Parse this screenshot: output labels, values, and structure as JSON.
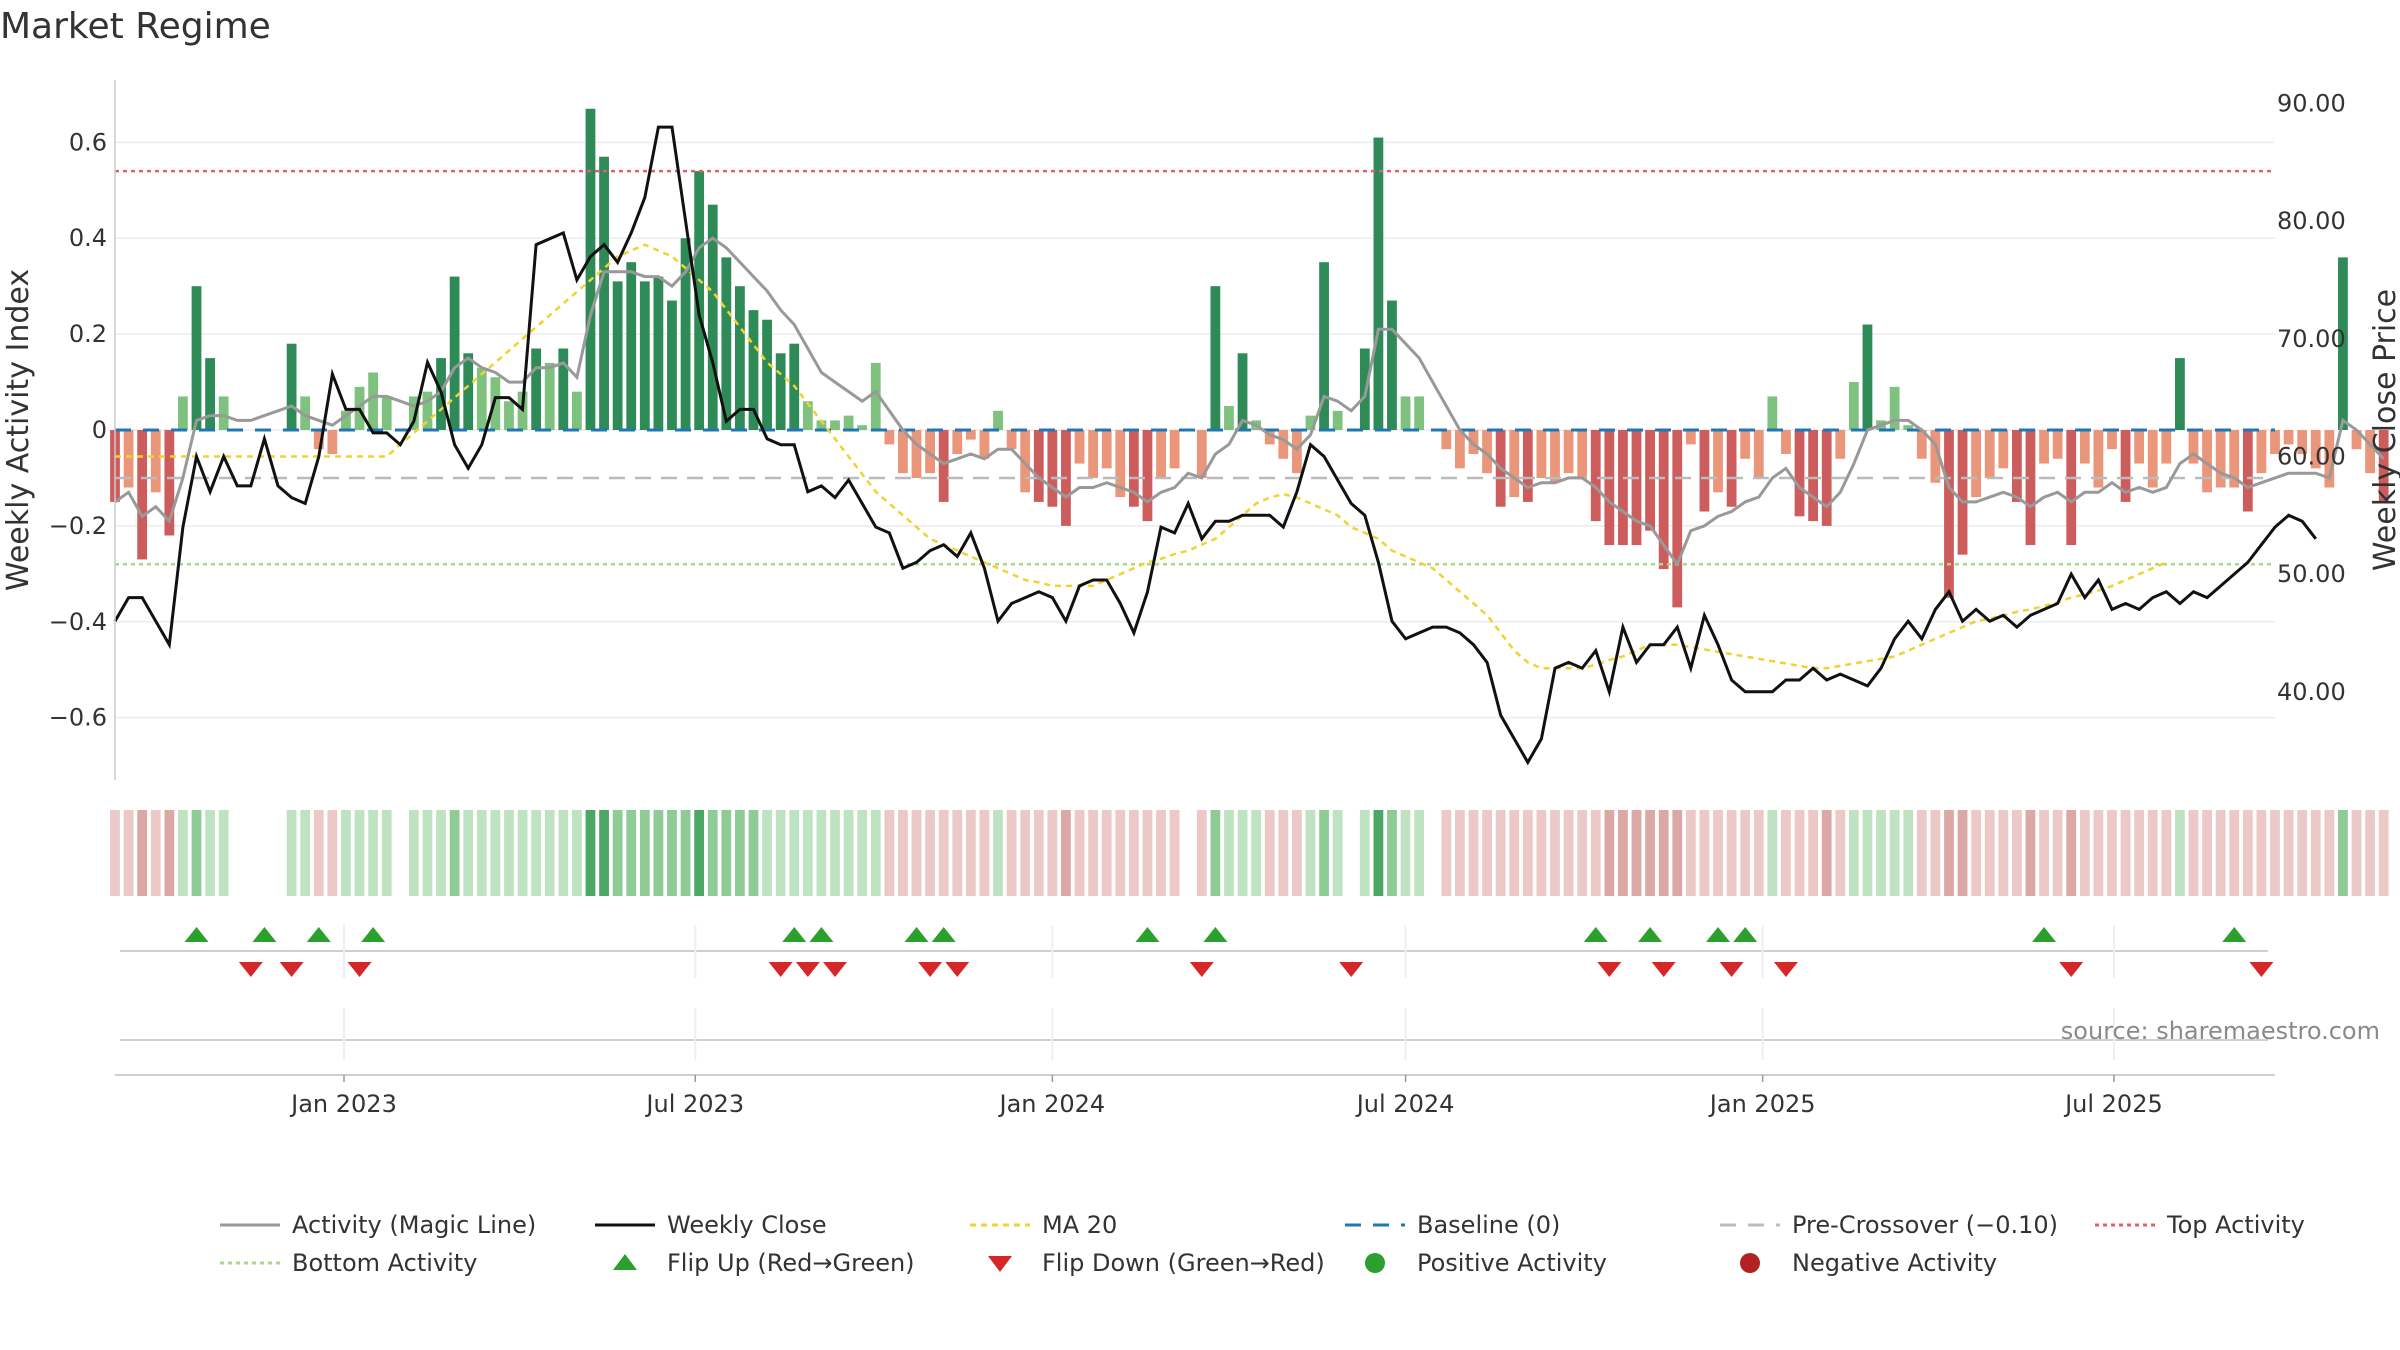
{
  "chart_data": {
    "type": "bar",
    "title": "Market Regime",
    "ylabel_left": "Weekly Activity Index",
    "ylabel_right": "Weekly Close Price",
    "ylim_left": [
      -0.73,
      0.73
    ],
    "ylim_right": [
      32.5,
      92.0
    ],
    "yticks_left": [
      0.6,
      0.4,
      0.2,
      0,
      -0.2,
      -0.4,
      -0.6
    ],
    "yticks_left_labels": [
      "0.6",
      "0.4",
      "0.2",
      "0",
      "−0.2",
      "−0.4",
      "−0.6"
    ],
    "yticks_right": [
      90,
      80,
      70,
      60,
      50,
      40
    ],
    "yticks_right_labels": [
      "90.00",
      "80.00",
      "70.00",
      "60.00",
      "50.00",
      "40.00"
    ],
    "x_start": "2022-09-05",
    "x_end": "2025-09-22",
    "xticks": [
      {
        "date": "2023-01-01",
        "label": "Jan 2023"
      },
      {
        "date": "2023-07-01",
        "label": "Jul 2023"
      },
      {
        "date": "2024-01-01",
        "label": "Jan 2024"
      },
      {
        "date": "2024-07-01",
        "label": "Jul 2024"
      },
      {
        "date": "2025-01-01",
        "label": "Jan 2025"
      },
      {
        "date": "2025-07-01",
        "label": "Jul 2025"
      }
    ],
    "grid": true,
    "top_activity": 0.54,
    "bottom_activity": -0.28,
    "pre_crossover": -0.1,
    "baseline": 0,
    "source": "source: sharemaestro.com",
    "series": [
      {
        "name": "Weekly Activity Index",
        "x_start": "2022-09-05",
        "interval_days": 7,
        "values": [
          -0.15,
          -0.12,
          -0.27,
          -0.13,
          -0.22,
          0.07,
          0.3,
          0.15,
          0.07,
          0.0,
          0.0,
          0.0,
          0.0,
          0.18,
          0.07,
          -0.04,
          -0.05,
          0.04,
          0.09,
          0.12,
          0.07,
          0.0,
          0.07,
          0.08,
          0.15,
          0.32,
          0.16,
          0.13,
          0.11,
          0.06,
          0.08,
          0.17,
          0.14,
          0.17,
          0.08,
          0.67,
          0.57,
          0.31,
          0.35,
          0.31,
          0.32,
          0.27,
          0.4,
          0.54,
          0.47,
          0.36,
          0.3,
          0.25,
          0.23,
          0.16,
          0.18,
          0.06,
          0.02,
          0.02,
          0.03,
          0.01,
          0.14,
          -0.03,
          -0.09,
          -0.1,
          -0.09,
          -0.15,
          -0.05,
          -0.02,
          -0.06,
          0.04,
          -0.04,
          -0.13,
          -0.15,
          -0.16,
          -0.2,
          -0.07,
          -0.1,
          -0.08,
          -0.14,
          -0.16,
          -0.19,
          -0.1,
          -0.08,
          0.0,
          -0.1,
          0.3,
          0.05,
          0.16,
          0.02,
          -0.03,
          -0.06,
          -0.09,
          0.03,
          0.35,
          0.04,
          0.0,
          0.17,
          0.61,
          0.27,
          0.07,
          0.07,
          0.0,
          -0.04,
          -0.08,
          -0.05,
          -0.09,
          -0.16,
          -0.14,
          -0.15,
          -0.1,
          -0.11,
          -0.09,
          -0.1,
          -0.19,
          -0.24,
          -0.24,
          -0.24,
          -0.21,
          -0.29,
          -0.37,
          -0.03,
          -0.17,
          -0.13,
          -0.16,
          -0.06,
          -0.1,
          0.07,
          -0.05,
          -0.18,
          -0.19,
          -0.2,
          -0.06,
          0.1,
          0.22,
          0.02,
          0.09,
          0.01,
          -0.06,
          -0.11,
          -0.35,
          -0.26,
          -0.14,
          -0.1,
          -0.08,
          -0.15,
          -0.24,
          -0.07,
          -0.06,
          -0.24,
          -0.07,
          -0.12,
          -0.04,
          -0.15,
          -0.07,
          -0.12,
          -0.07,
          0.15,
          -0.07,
          -0.13,
          -0.12,
          -0.12,
          -0.17,
          -0.09,
          -0.05,
          -0.03,
          -0.05,
          -0.08,
          -0.12,
          0.36,
          -0.04,
          -0.09,
          -0.15
        ]
      },
      {
        "name": "Weekly Close",
        "x_start": "2022-09-05",
        "interval_days": 7,
        "values": [
          46.0,
          48.0,
          48.0,
          46.0,
          44.0,
          54.0,
          60.0,
          57.0,
          60.0,
          57.5,
          57.5,
          61.5,
          57.5,
          56.5,
          56.0,
          60.0,
          67.0,
          64.0,
          64.0,
          62.0,
          62.0,
          61.0,
          63.0,
          68.0,
          65.5,
          61.0,
          59.0,
          61.0,
          65.0,
          65.0,
          64.0,
          78.0,
          78.5,
          79.0,
          75.0,
          77.0,
          78.0,
          76.5,
          79.0,
          82.0,
          88.0,
          88.0,
          80.0,
          72.0,
          68.0,
          63.0,
          64.0,
          64.0,
          61.5,
          61.0,
          61.0,
          57.0,
          57.5,
          56.5,
          58.0,
          56.0,
          54.0,
          53.5,
          50.5,
          51.0,
          52.0,
          52.5,
          51.5,
          53.5,
          50.5,
          46.0,
          47.5,
          48.0,
          48.5,
          48.0,
          46.0,
          49.0,
          49.5,
          49.5,
          47.5,
          45.0,
          48.5,
          54.0,
          53.5,
          56.0,
          53.0,
          54.5,
          54.5,
          55.0,
          55.0,
          55.0,
          54.0,
          57.0,
          61.0,
          60.0,
          58.0,
          56.0,
          55.0,
          51.0,
          46.0,
          44.5,
          45.0,
          45.5,
          45.5,
          45.0,
          44.0,
          42.5,
          38.0,
          36.0,
          34.0,
          36.0,
          42.0,
          42.5,
          42.0,
          43.5,
          40.0,
          45.5,
          42.5,
          44.0,
          44.0,
          45.5,
          42.0,
          46.5,
          44.0,
          41.0,
          40.0,
          40.0,
          40.0,
          41.0,
          41.0,
          42.0,
          41.0,
          41.5,
          41.0,
          40.5,
          42.0,
          44.5,
          46.0,
          44.5,
          47.0,
          48.5,
          46.0,
          47.0,
          46.0,
          46.5,
          45.5,
          46.5,
          47.0,
          47.5,
          50.0,
          48.0,
          49.5,
          47.0,
          47.5,
          47.0,
          48.0,
          48.5,
          47.5,
          48.5,
          48.0,
          49.0,
          50.0,
          51.0,
          52.5,
          54.0,
          55.0,
          54.5,
          53.0
        ]
      },
      {
        "name": "MA 20",
        "x_start": "2022-09-05",
        "interval_days": 7,
        "values": [
          60.0,
          60.0,
          60.0,
          60.0,
          60.0,
          60.0,
          60.0,
          60.0,
          60.0,
          60.0,
          60.0,
          60.0,
          60.0,
          60.0,
          60.0,
          60.0,
          60.0,
          60.0,
          60.0,
          60.0,
          60.0,
          61.0,
          62.0,
          63.0,
          64.0,
          65.0,
          66.0,
          67.0,
          68.0,
          69.0,
          70.0,
          71.0,
          72.0,
          73.0,
          74.0,
          75.0,
          76.0,
          77.0,
          77.5,
          78.0,
          77.5,
          77.0,
          76.0,
          75.0,
          74.0,
          72.5,
          71.0,
          69.5,
          68.0,
          67.0,
          66.0,
          64.5,
          63.0,
          61.5,
          60.0,
          58.5,
          57.0,
          56.0,
          55.0,
          54.0,
          53.0,
          52.5,
          52.0,
          51.5,
          51.0,
          50.5,
          50.0,
          49.5,
          49.3,
          49.0,
          49.0,
          49.0,
          49.0,
          49.5,
          50.0,
          50.5,
          51.0,
          51.3,
          51.7,
          52.0,
          52.5,
          53.0,
          54.0,
          55.0,
          56.0,
          56.5,
          56.8,
          56.5,
          56.0,
          55.5,
          55.0,
          54.0,
          53.5,
          53.0,
          52.0,
          51.5,
          51.0,
          50.5,
          49.5,
          48.5,
          47.5,
          46.5,
          45.0,
          43.5,
          42.5,
          42.0,
          42.0,
          42.0,
          42.0,
          42.3,
          42.7,
          43.0,
          43.5,
          44.0,
          44.0,
          44.0,
          43.8,
          43.6,
          43.4,
          43.2,
          43.0,
          42.8,
          42.6,
          42.4,
          42.2,
          42.0,
          42.0,
          42.2,
          42.4,
          42.6,
          42.8,
          43.0,
          43.5,
          44.0,
          44.5,
          45.0,
          45.5,
          46.0,
          46.2,
          46.5,
          46.8,
          47.0,
          47.3,
          47.6,
          48.0,
          48.3,
          48.6,
          49.0,
          49.5,
          50.0,
          50.5,
          51.0
        ]
      },
      {
        "name": "Activity (Magic Line)",
        "x_start": "2022-09-05",
        "interval_days": 7,
        "values": [
          -0.15,
          -0.13,
          -0.18,
          -0.16,
          -0.19,
          -0.1,
          0.02,
          0.03,
          0.03,
          0.02,
          0.02,
          0.03,
          0.04,
          0.05,
          0.03,
          0.02,
          0.01,
          0.03,
          0.05,
          0.07,
          0.07,
          0.06,
          0.05,
          0.06,
          0.08,
          0.13,
          0.15,
          0.13,
          0.12,
          0.1,
          0.1,
          0.13,
          0.13,
          0.14,
          0.11,
          0.24,
          0.33,
          0.33,
          0.33,
          0.32,
          0.32,
          0.3,
          0.33,
          0.38,
          0.4,
          0.38,
          0.35,
          0.32,
          0.29,
          0.25,
          0.22,
          0.17,
          0.12,
          0.1,
          0.08,
          0.06,
          0.08,
          0.04,
          0.0,
          -0.03,
          -0.05,
          -0.07,
          -0.06,
          -0.05,
          -0.06,
          -0.04,
          -0.04,
          -0.07,
          -0.1,
          -0.12,
          -0.14,
          -0.12,
          -0.12,
          -0.11,
          -0.12,
          -0.13,
          -0.15,
          -0.13,
          -0.12,
          -0.09,
          -0.1,
          -0.05,
          -0.03,
          0.02,
          0.01,
          -0.01,
          -0.02,
          -0.04,
          -0.01,
          0.07,
          0.06,
          0.04,
          0.07,
          0.21,
          0.21,
          0.18,
          0.15,
          0.1,
          0.05,
          0.0,
          -0.03,
          -0.05,
          -0.08,
          -0.1,
          -0.12,
          -0.11,
          -0.11,
          -0.1,
          -0.1,
          -0.12,
          -0.15,
          -0.17,
          -0.19,
          -0.2,
          -0.24,
          -0.28,
          -0.21,
          -0.2,
          -0.18,
          -0.17,
          -0.15,
          -0.14,
          -0.1,
          -0.08,
          -0.12,
          -0.14,
          -0.16,
          -0.13,
          -0.07,
          0.0,
          0.01,
          0.02,
          0.02,
          0.0,
          -0.03,
          -0.12,
          -0.15,
          -0.15,
          -0.14,
          -0.13,
          -0.14,
          -0.16,
          -0.14,
          -0.13,
          -0.15,
          -0.13,
          -0.13,
          -0.11,
          -0.13,
          -0.12,
          -0.13,
          -0.12,
          -0.07,
          -0.05,
          -0.07,
          -0.09,
          -0.1,
          -0.12,
          -0.11,
          -0.1,
          -0.09,
          -0.09,
          -0.09,
          -0.1,
          0.02,
          0.0,
          -0.03,
          -0.06
        ]
      }
    ],
    "flip_up_dates": [
      "2022-10-17",
      "2022-11-21",
      "2022-12-19",
      "2023-01-16",
      "2023-08-21",
      "2023-09-04",
      "2023-10-23",
      "2023-11-06",
      "2024-02-19",
      "2024-03-25",
      "2024-10-07",
      "2024-11-04",
      "2024-12-09",
      "2024-12-23",
      "2025-05-26",
      "2025-09-01"
    ],
    "flip_down_dates": [
      "2022-11-14",
      "2022-12-05",
      "2023-01-09",
      "2023-08-14",
      "2023-08-28",
      "2023-09-11",
      "2023-10-30",
      "2023-11-13",
      "2024-03-18",
      "2024-06-03",
      "2024-10-14",
      "2024-11-11",
      "2024-12-16",
      "2025-01-13",
      "2025-06-09",
      "2025-09-15"
    ],
    "legend": [
      "Activity (Magic Line)",
      "Weekly Close",
      "MA 20",
      "Baseline (0)",
      "Pre-Crossover (−0.10)",
      "Top Activity",
      "Bottom Activity",
      "Flip Up (Red→Green)",
      "Flip Down (Green→Red)",
      "Positive Activity",
      "Negative Activity"
    ],
    "colors": {
      "strong_green": "#2e8b57",
      "light_green": "#7fc17f",
      "strong_red": "#cd5c5c",
      "light_red": "#e9967a",
      "close": "#111111",
      "magic": "#999999",
      "ma20": "#f2d22e",
      "baseline": "#1f77b4",
      "pre_crossover": "#bbbbbb",
      "top": "#e06070",
      "bottom": "#a8d888",
      "flip_up": "#2ca02c",
      "flip_down": "#d62728",
      "positive_dot": "#2ca02c",
      "negative_dot": "#b22222"
    }
  }
}
